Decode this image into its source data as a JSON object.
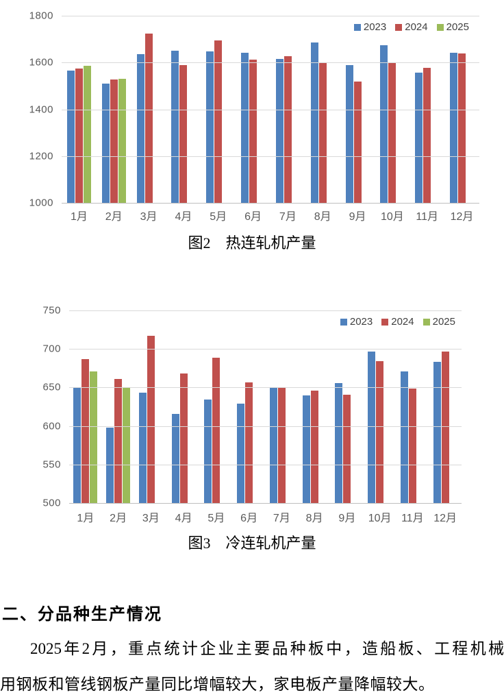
{
  "chart_data": [
    {
      "type": "bar",
      "title": "图2　热连轧机产量",
      "categories": [
        "1月",
        "2月",
        "3月",
        "4月",
        "5月",
        "6月",
        "7月",
        "8月",
        "9月",
        "10月",
        "11月",
        "12月"
      ],
      "series": [
        {
          "name": "2023",
          "color": "#4F81BD",
          "values": [
            1565,
            1510,
            1636,
            1652,
            1647,
            1643,
            1615,
            1687,
            1589,
            1674,
            1556,
            1642
          ]
        },
        {
          "name": "2024",
          "color": "#C0504D",
          "values": [
            1573,
            1528,
            1725,
            1590,
            1696,
            1613,
            1626,
            1597,
            1518,
            1598,
            1578,
            1639
          ]
        },
        {
          "name": "2025",
          "color": "#9BBB59",
          "values": [
            1585,
            1530,
            null,
            null,
            null,
            null,
            null,
            null,
            null,
            null,
            null,
            null
          ]
        }
      ],
      "xlabel": "",
      "ylabel": "",
      "ylim": [
        1000,
        1800
      ],
      "ytick_step": 200,
      "grid": true,
      "legend_position": "top-right"
    },
    {
      "type": "bar",
      "title": "图3　冷连轧机产量",
      "categories": [
        "1月",
        "2月",
        "3月",
        "4月",
        "5月",
        "6月",
        "7月",
        "8月",
        "9月",
        "10月",
        "11月",
        "12月"
      ],
      "series": [
        {
          "name": "2023",
          "color": "#4F81BD",
          "values": [
            650,
            598,
            643,
            616,
            634,
            629,
            650,
            640,
            656,
            697,
            671,
            683
          ]
        },
        {
          "name": "2024",
          "color": "#C0504D",
          "values": [
            687,
            661,
            717,
            668,
            689,
            657,
            650,
            646,
            641,
            684,
            649,
            697
          ]
        },
        {
          "name": "2025",
          "color": "#9BBB59",
          "values": [
            671,
            650,
            null,
            null,
            null,
            null,
            null,
            null,
            null,
            null,
            null,
            null
          ]
        }
      ],
      "xlabel": "",
      "ylabel": "",
      "ylim": [
        500,
        750
      ],
      "ytick_step": 50,
      "grid": true,
      "legend_position": "top-right"
    }
  ],
  "section": {
    "heading": "二、分品种生产情况",
    "paragraph_lines": [
      "2025年2月，重点统计企业主要品种板中，造船板、工程机械",
      "用钢板和管线钢板产量同比增幅较大，家电板产量降幅较大。"
    ]
  }
}
